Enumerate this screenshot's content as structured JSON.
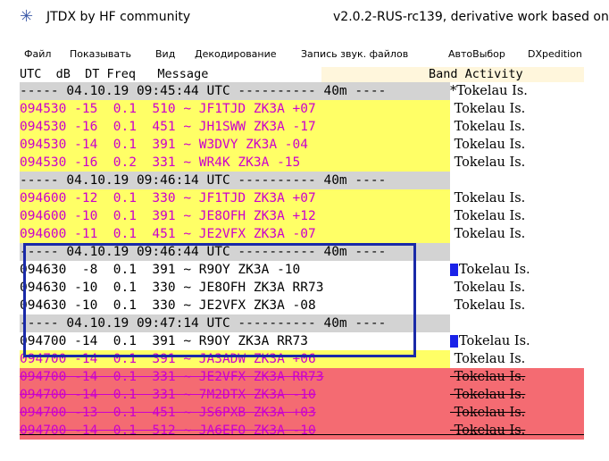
{
  "window": {
    "title": "JTDX  by HF community",
    "version": "v2.0.2-RUS-rc139, derivative work based on"
  },
  "menu": [
    {
      "label": "Файл"
    },
    {
      "label": "Показывать"
    },
    {
      "label": "Вид"
    },
    {
      "label": "Декодирование"
    },
    {
      "label": "Запись звук. файлов"
    },
    {
      "label": "АвтоВыбор"
    },
    {
      "label": "DXpedition"
    }
  ],
  "columns": {
    "decode_header": "UTC  dB  DT Freq   Message",
    "band_activity": "Band Activity"
  },
  "rows": [
    {
      "kind": "sep",
      "text": "----- 04.10.19 09:45:44 UTC ---------- 40m ----",
      "activity": "*Tokelau Is."
    },
    {
      "kind": "yellow",
      "text": "094530 -15  0.1  510 ~ JF1TJD ZK3A +07",
      "activity": " Tokelau Is."
    },
    {
      "kind": "yellow",
      "text": "094530 -16  0.1  451 ~ JH1SWW ZK3A -17",
      "activity": " Tokelau Is."
    },
    {
      "kind": "yellow",
      "text": "094530 -14  0.1  391 ~ W3DVY ZK3A -04",
      "activity": " Tokelau Is."
    },
    {
      "kind": "yellow",
      "text": "094530 -16  0.2  331 ~ WR4K ZK3A -15",
      "activity": " Tokelau Is."
    },
    {
      "kind": "sep",
      "text": "----- 04.10.19 09:46:14 UTC ---------- 40m ----",
      "activity": ""
    },
    {
      "kind": "yellow",
      "text": "094600 -12  0.1  330 ~ JF1TJD ZK3A +07",
      "activity": " Tokelau Is."
    },
    {
      "kind": "yellow",
      "text": "094600 -10  0.1  391 ~ JE8OFH ZK3A +12",
      "activity": " Tokelau Is."
    },
    {
      "kind": "yellow",
      "text": "094600 -11  0.1  451 ~ JE2VFX ZK3A -07",
      "activity": " Tokelau Is."
    },
    {
      "kind": "sep",
      "text": "----- 04.10.19 09:46:44 UTC ---------- 40m ----",
      "activity": ""
    },
    {
      "kind": "hl",
      "text": "094630  -8  0.1  391 ~ R9OY ZK3A -10",
      "activity": "Tokelau Is.",
      "marker": true
    },
    {
      "kind": "hl",
      "text": "094630 -10  0.1  330 ~ JE8OFH ZK3A RR73",
      "activity": " Tokelau Is."
    },
    {
      "kind": "hl",
      "text": "094630 -10  0.1  330 ~ JE2VFX ZK3A -08",
      "activity": " Tokelau Is."
    },
    {
      "kind": "sep",
      "text": "----- 04.10.19 09:47:14 UTC ---------- 40m ----",
      "activity": ""
    },
    {
      "kind": "hl",
      "text": "094700 -14  0.1  391 ~ R9OY ZK3A RR73",
      "activity": "Tokelau Is.",
      "marker": true
    },
    {
      "kind": "yellow",
      "text": "094700 -14  0.1  391 ~ JA3ADW ZK3A +06",
      "activity": " Tokelau Is."
    },
    {
      "kind": "red",
      "text": "094700 -14  0.1  331 ~ JE2VFX ZK3A RR73",
      "activity": " Tokelau Is."
    },
    {
      "kind": "red",
      "text": "094700 -14  0.1  331 ~ 7M2DTX ZK3A -10",
      "activity": " Tokelau Is."
    },
    {
      "kind": "red",
      "text": "094700 -13  0.1  451 ~ JS6PXB ZK3A +03",
      "activity": " Tokelau Is."
    },
    {
      "kind": "red",
      "text": "094700 -14  0.1  512 ~ JA6EFO ZK3A -10",
      "activity": " Tokelau Is."
    }
  ]
}
